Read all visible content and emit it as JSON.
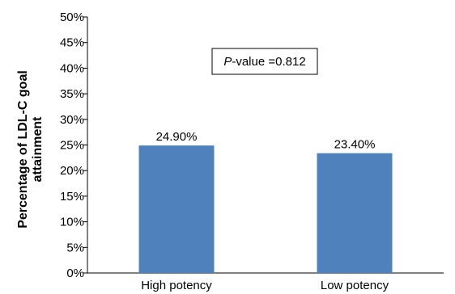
{
  "chart_data": {
    "type": "bar",
    "categories": [
      "High potency",
      "Low potency"
    ],
    "values": [
      24.9,
      23.4
    ],
    "data_labels": [
      "24.90%",
      "23.40%"
    ],
    "ylabel_lines": [
      "Percentage of LDL-C goal",
      "attainment"
    ],
    "xlabel": "",
    "ylim": [
      0,
      50
    ],
    "ytick_values": [
      0,
      5,
      10,
      15,
      20,
      25,
      30,
      35,
      40,
      45,
      50
    ],
    "ytick_labels": [
      "0%",
      "5%",
      "10%",
      "15%",
      "20%",
      "25%",
      "30%",
      "35%",
      "40%",
      "45%",
      "50%"
    ],
    "grid": false,
    "legend": "none",
    "bar_color": "#4f81bd",
    "annotation": {
      "prefix": "P",
      "text": "-value =0.812"
    }
  }
}
